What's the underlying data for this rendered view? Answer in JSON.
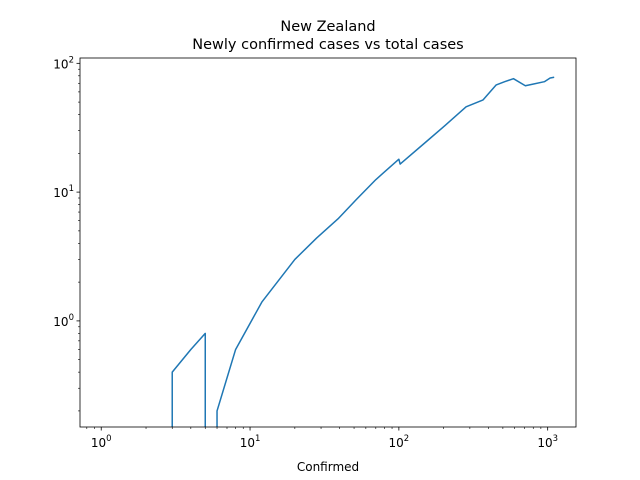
{
  "chart_data": {
    "type": "line",
    "title": "New Zealand",
    "subtitle": "Newly confirmed cases vs total cases",
    "xlabel": "Confirmed",
    "ylabel": "",
    "xscale": "log",
    "yscale": "log",
    "xlim": [
      0.72,
      1550
    ],
    "ylim": [
      0.15,
      110
    ],
    "grid": false,
    "legend": "none",
    "colors": {
      "line": "#1f77b4"
    },
    "x_ticks": [
      {
        "value": 1,
        "base": "10",
        "exp": "0"
      },
      {
        "value": 10,
        "base": "10",
        "exp": "1"
      },
      {
        "value": 100,
        "base": "10",
        "exp": "2"
      },
      {
        "value": 1000,
        "base": "10",
        "exp": "3"
      }
    ],
    "y_ticks": [
      {
        "value": 1,
        "base": "10",
        "exp": "0"
      },
      {
        "value": 10,
        "base": "10",
        "exp": "1"
      },
      {
        "value": 100,
        "base": "10",
        "exp": "2"
      }
    ],
    "series": [
      {
        "segments": [
          [
            [
              3,
              0.15
            ],
            [
              3,
              0.4
            ],
            [
              4,
              0.6
            ],
            [
              5,
              0.8
            ],
            [
              5,
              0.15
            ]
          ],
          [
            [
              6,
              0.15
            ],
            [
              6,
              0.2
            ],
            [
              8,
              0.6
            ],
            [
              12,
              1.4
            ],
            [
              20,
              3.0
            ],
            [
              28,
              4.4
            ],
            [
              39,
              6.2
            ],
            [
              52,
              8.8
            ],
            [
              70,
              12.5
            ],
            [
              100,
              18.0
            ],
            [
              102,
              16.5
            ],
            [
              155,
              25.0
            ],
            [
              205,
              33.0
            ],
            [
              283,
              46.0
            ],
            [
              368,
              52.0
            ],
            [
              451,
              68.0
            ],
            [
              514,
              72.0
            ],
            [
              589,
              76.0
            ],
            [
              708,
              67.0
            ],
            [
              797,
              69.0
            ],
            [
              950,
              72.0
            ],
            [
              1039,
              77.0
            ],
            [
              1106,
              78.0
            ]
          ]
        ]
      }
    ]
  }
}
